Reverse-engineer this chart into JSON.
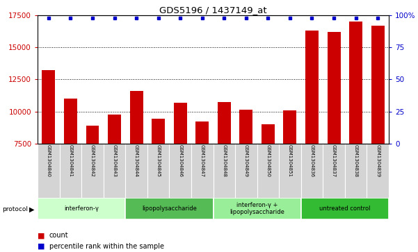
{
  "title": "GDS5196 / 1437149_at",
  "samples": [
    "GSM1304840",
    "GSM1304841",
    "GSM1304842",
    "GSM1304843",
    "GSM1304844",
    "GSM1304845",
    "GSM1304846",
    "GSM1304847",
    "GSM1304848",
    "GSM1304849",
    "GSM1304850",
    "GSM1304851",
    "GSM1304836",
    "GSM1304837",
    "GSM1304838",
    "GSM1304839"
  ],
  "counts": [
    13200,
    11000,
    8900,
    9750,
    11600,
    9450,
    10700,
    9250,
    10750,
    10150,
    9000,
    10100,
    16300,
    16200,
    17000,
    16700
  ],
  "bar_color": "#cc0000",
  "percentile_color": "#0000cc",
  "ylim_left": [
    7500,
    17500
  ],
  "ylim_right": [
    0,
    100
  ],
  "yticks_left": [
    7500,
    10000,
    12500,
    15000,
    17500
  ],
  "yticks_right": [
    0,
    25,
    50,
    75,
    100
  ],
  "groups": [
    {
      "label": "interferon-γ",
      "start": 0,
      "end": 4,
      "color": "#ccffcc"
    },
    {
      "label": "lipopolysaccharide",
      "start": 4,
      "end": 8,
      "color": "#55bb55"
    },
    {
      "label": "interferon-γ +\nlipopolysaccharide",
      "start": 8,
      "end": 12,
      "color": "#99ee99"
    },
    {
      "label": "untreated control",
      "start": 12,
      "end": 16,
      "color": "#33bb33"
    }
  ],
  "tick_label_color_left": "#cc0000",
  "tick_label_color_right": "#0000cc",
  "legend_count_color": "#cc0000",
  "legend_percentile_color": "#0000cc",
  "xlabel_bg": "#d4d4d4"
}
